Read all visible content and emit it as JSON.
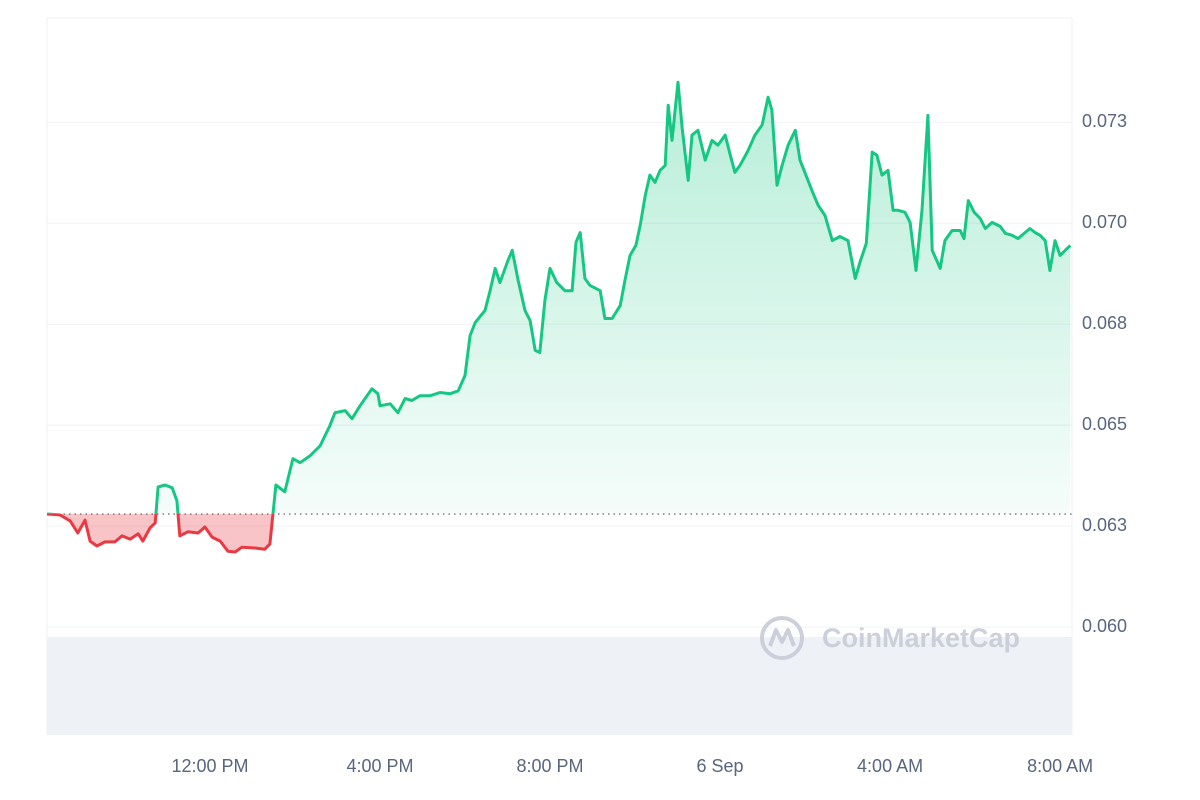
{
  "chart_data": {
    "type": "line",
    "x": [
      8.165,
      8.47,
      8.71,
      8.89,
      9.06,
      9.18,
      9.34,
      9.53,
      9.76,
      9.93,
      10.12,
      10.31,
      10.42,
      10.59,
      10.71,
      10.78,
      10.94,
      11.11,
      11.22,
      11.29,
      11.48,
      11.72,
      11.88,
      12.05,
      12.24,
      12.42,
      12.59,
      12.75,
      13.06,
      13.29,
      13.41,
      13.55,
      13.76,
      13.95,
      14.12,
      14.35,
      14.59,
      14.82,
      14.94,
      15.18,
      15.34,
      15.53,
      15.65,
      15.81,
      15.95,
      16.0,
      16.24,
      16.42,
      16.59,
      16.75,
      16.94,
      17.18,
      17.41,
      17.65,
      17.84,
      18.0,
      18.12,
      18.24,
      18.47,
      18.59,
      18.71,
      18.82,
      19.01,
      19.11,
      19.25,
      19.41,
      19.53,
      19.65,
      19.76,
      19.88,
      20.0,
      20.16,
      20.35,
      20.52,
      20.61,
      20.71,
      20.82,
      20.94,
      21.18,
      21.29,
      21.46,
      21.65,
      21.76,
      21.88,
      22.02,
      22.12,
      22.24,
      22.35,
      22.47,
      22.59,
      22.71,
      22.78,
      22.87,
      23.01,
      23.11,
      23.25,
      23.34,
      23.48,
      23.65,
      23.81,
      23.95,
      24.12,
      24.24,
      24.35,
      24.47,
      24.66,
      24.82,
      24.99,
      25.13,
      25.22,
      25.34,
      25.46,
      25.6,
      25.77,
      25.88,
      26.02,
      26.16,
      26.31,
      26.47,
      26.64,
      26.82,
      27.01,
      27.18,
      27.29,
      27.44,
      27.58,
      27.69,
      27.81,
      27.95,
      28.07,
      28.19,
      28.35,
      28.47,
      28.61,
      28.75,
      28.89,
      28.99,
      29.18,
      29.29,
      29.46,
      29.65,
      29.74,
      29.84,
      29.98,
      30.12,
      30.24,
      30.4,
      30.59,
      30.71,
      30.87,
      31.01,
      31.18,
      31.29,
      31.41,
      31.53,
      31.65,
      31.76,
      31.88,
      32.0,
      32.12,
      32.24
    ],
    "values": [
      0.0628,
      0.06278,
      0.06263,
      0.06233,
      0.06265,
      0.06213,
      0.06201,
      0.06211,
      0.06211,
      0.06226,
      0.06218,
      0.06231,
      0.06213,
      0.06246,
      0.06258,
      0.06347,
      0.06352,
      0.06345,
      0.06313,
      0.06226,
      0.06236,
      0.06233,
      0.06248,
      0.06223,
      0.06213,
      0.06188,
      0.06186,
      0.06198,
      0.06196,
      0.06193,
      0.06206,
      0.06352,
      0.06335,
      0.06417,
      0.06407,
      0.06424,
      0.06449,
      0.06499,
      0.06531,
      0.06536,
      0.06516,
      0.06548,
      0.06566,
      0.0659,
      0.06578,
      0.06548,
      0.06553,
      0.06531,
      0.06566,
      0.06561,
      0.06573,
      0.06573,
      0.06581,
      0.06578,
      0.06585,
      0.06623,
      0.06722,
      0.06754,
      0.06784,
      0.06833,
      0.06888,
      0.06853,
      0.06908,
      0.06933,
      0.06858,
      0.06784,
      0.06759,
      0.06685,
      0.0668,
      0.06809,
      0.06888,
      0.06853,
      0.06833,
      0.06833,
      0.06953,
      0.06977,
      0.06863,
      0.06846,
      0.06833,
      0.06764,
      0.06764,
      0.06796,
      0.06858,
      0.0692,
      0.06945,
      0.06995,
      0.07069,
      0.07119,
      0.07101,
      0.07131,
      0.07143,
      0.07292,
      0.07205,
      0.07349,
      0.07235,
      0.07106,
      0.07218,
      0.0723,
      0.07156,
      0.07205,
      0.07193,
      0.07218,
      0.07168,
      0.07126,
      0.07143,
      0.0718,
      0.07218,
      0.07243,
      0.07312,
      0.0728,
      0.07094,
      0.07143,
      0.07193,
      0.0723,
      0.07156,
      0.07119,
      0.07081,
      0.07044,
      0.07019,
      0.06957,
      0.06967,
      0.06957,
      0.06863,
      0.06903,
      0.0695,
      0.07176,
      0.07168,
      0.07119,
      0.07131,
      0.07032,
      0.07032,
      0.07027,
      0.07002,
      0.06883,
      0.07032,
      0.07267,
      0.06933,
      0.06888,
      0.06957,
      0.06982,
      0.06982,
      0.06962,
      0.07056,
      0.07027,
      0.07012,
      0.06987,
      0.07002,
      0.06992,
      0.06975,
      0.0697,
      0.06962,
      0.06977,
      0.06987,
      0.06977,
      0.0697,
      0.06957,
      0.06883,
      0.06957,
      0.0692,
      0.06933,
      0.06945
    ],
    "reference_value": 0.0628,
    "up_color": "#16c784",
    "down_color": "#ea3943",
    "xlim": [
      8.165,
      32.28
    ],
    "xticks": [
      {
        "value": 12,
        "label": "12:00 PM"
      },
      {
        "value": 16,
        "label": "4:00 PM"
      },
      {
        "value": 20,
        "label": "8:00 PM"
      },
      {
        "value": 24,
        "label": "6 Sep"
      },
      {
        "value": 28,
        "label": "4:00 AM"
      },
      {
        "value": 32,
        "label": "8:00 AM"
      }
    ],
    "ylim": [
      0.05733,
      0.07508
    ],
    "yticks": [
      {
        "value": 0.0725,
        "label": "0.073"
      },
      {
        "value": 0.07,
        "label": "0.070"
      },
      {
        "value": 0.0675,
        "label": "0.068"
      },
      0.065,
      {
        "value": 0.0625,
        "label": "0.063"
      },
      {
        "value": 0.06,
        "label": "0.060"
      }
    ],
    "grid": true,
    "watermark": "CoinMarketCap"
  }
}
